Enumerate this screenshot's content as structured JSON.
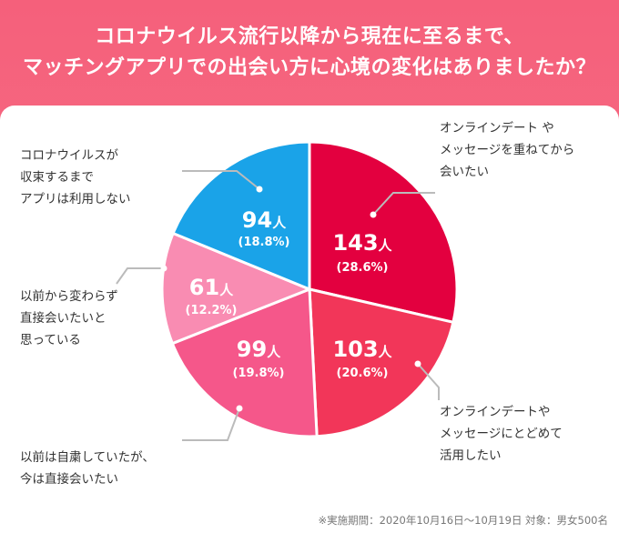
{
  "title": {
    "line1": "コロナウイルス流行以降から現在に至るまで、",
    "line2": "マッチングアプリでの出会い方に心境の変化はありましたか？"
  },
  "chart_data": {
    "type": "pie",
    "total": 500,
    "slices": [
      {
        "value": 143,
        "count_label": "143",
        "unit": "人",
        "percent_label": "(28.6%)",
        "label_lines": [
          "オンラインデート や",
          "メッセージを重ねてから",
          "会いたい"
        ],
        "color": "#e3003f"
      },
      {
        "value": 103,
        "count_label": "103",
        "unit": "人",
        "percent_label": "(20.6%)",
        "label_lines": [
          "オンラインデートや",
          "メッセージにとどめて",
          "活用したい"
        ],
        "color": "#f23659"
      },
      {
        "value": 99,
        "count_label": "99",
        "unit": "人",
        "percent_label": "(19.8%)",
        "label_lines": [
          "以前は自粛していたが、",
          "今は直接会いたい"
        ],
        "color": "#f5578a"
      },
      {
        "value": 61,
        "count_label": "61",
        "unit": "人",
        "percent_label": "(12.2%)",
        "label_lines": [
          "以前から変わらず",
          "直接会いたいと",
          "思っている"
        ],
        "color": "#f98cb2"
      },
      {
        "value": 94,
        "count_label": "94",
        "unit": "人",
        "percent_label": "(18.8%)",
        "label_lines": [
          "コロナウイルスが",
          "収束するまで",
          "アプリは利用しない"
        ],
        "color": "#1aa3e8"
      }
    ]
  },
  "footnote": "※実施期間：2020年10月16日～10月19日 対象：男女500名"
}
